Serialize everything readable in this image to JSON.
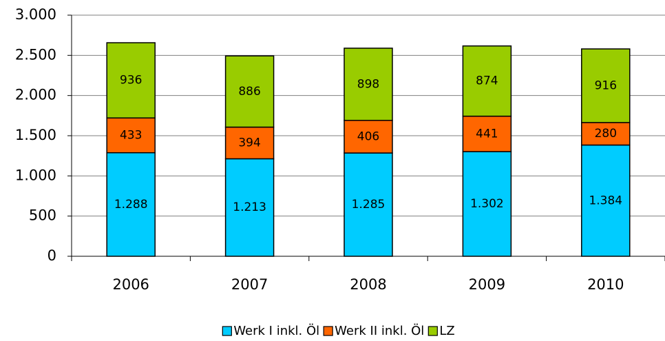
{
  "chart_data": {
    "type": "stacked_bar",
    "categories": [
      "2006",
      "2007",
      "2008",
      "2009",
      "2010"
    ],
    "series": [
      {
        "name": "Werk I inkl. Öl",
        "color": "#00ccff",
        "values": [
          1288,
          1213,
          1285,
          1302,
          1384
        ],
        "value_labels": [
          "1.288",
          "1.213",
          "1.285",
          "1.302",
          "1.384"
        ]
      },
      {
        "name": "Werk II inkl. Öl",
        "color": "#ff6600",
        "values": [
          433,
          394,
          406,
          441,
          280
        ]
      },
      {
        "name": "LZ",
        "color": "#99cc00",
        "values": [
          936,
          886,
          898,
          874,
          916
        ]
      }
    ],
    "ylim": [
      0,
      3000
    ],
    "yticks": [
      0,
      500,
      {
        "value": 1000,
        "label": "1.000"
      },
      {
        "value": 1500,
        "label": "1.500"
      },
      {
        "value": 2000,
        "label": "2.000"
      },
      {
        "value": 2500,
        "label": "2.500"
      },
      {
        "value": 3000,
        "label": "3.000"
      }
    ],
    "grid": true,
    "legend": "bottom"
  }
}
